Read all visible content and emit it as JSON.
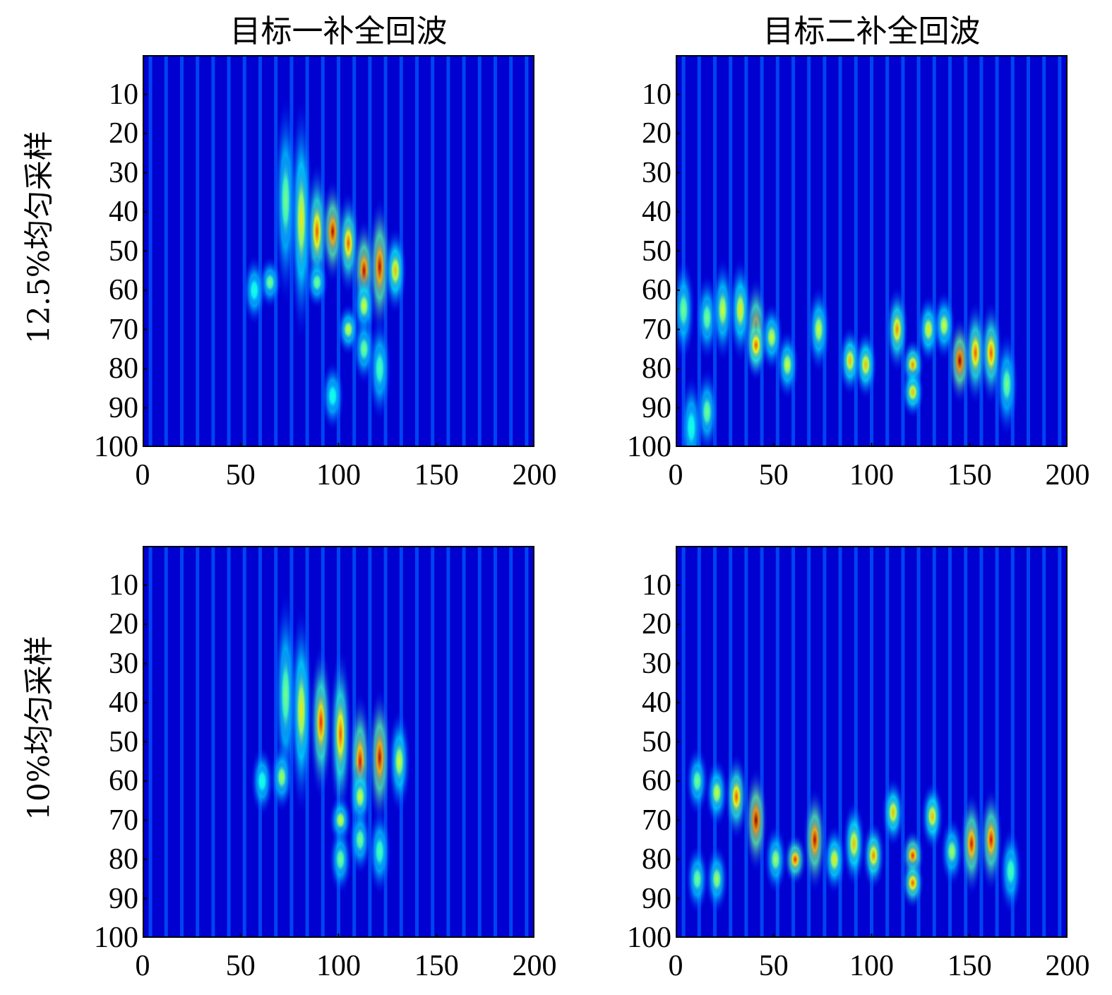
{
  "chart_data": [
    {
      "type": "heatmap",
      "title": "目标一补全回波",
      "ylabel": "12.5%均匀采样",
      "xlim": [
        0,
        200
      ],
      "ylim": [
        100,
        0
      ],
      "xticks": [
        0,
        50,
        100,
        150,
        200
      ],
      "yticks": [
        10,
        20,
        30,
        40,
        50,
        60,
        70,
        80,
        90,
        100
      ],
      "colormap": "jet",
      "peaks": [
        [
          73,
          37,
          0.5,
          12
        ],
        [
          81,
          42,
          0.65,
          14
        ],
        [
          89,
          45,
          0.8,
          8
        ],
        [
          97,
          45,
          0.95,
          6
        ],
        [
          105,
          48,
          0.8,
          6
        ],
        [
          113,
          55,
          0.95,
          6
        ],
        [
          121,
          54,
          0.95,
          8
        ],
        [
          129,
          55,
          0.7,
          5
        ],
        [
          113,
          64,
          0.6,
          4
        ],
        [
          105,
          70,
          0.6,
          3
        ],
        [
          113,
          75,
          0.5,
          4
        ],
        [
          89,
          58,
          0.5,
          3
        ],
        [
          65,
          58,
          0.5,
          3
        ],
        [
          57,
          60,
          0.4,
          4
        ],
        [
          121,
          80,
          0.45,
          6
        ],
        [
          97,
          87,
          0.4,
          4
        ]
      ]
    },
    {
      "type": "heatmap",
      "title": "目标二补全回波",
      "ylabel": "",
      "xlim": [
        0,
        200
      ],
      "ylim": [
        100,
        0
      ],
      "xticks": [
        0,
        50,
        100,
        150,
        200
      ],
      "yticks": [
        10,
        20,
        30,
        40,
        50,
        60,
        70,
        80,
        90,
        100
      ],
      "colormap": "jet",
      "peaks": [
        [
          4,
          65,
          0.5,
          6
        ],
        [
          16,
          67,
          0.5,
          5
        ],
        [
          24,
          65,
          0.6,
          6
        ],
        [
          33,
          65,
          0.65,
          6
        ],
        [
          41,
          70,
          0.9,
          6
        ],
        [
          41,
          74,
          0.8,
          4
        ],
        [
          49,
          72,
          0.6,
          4
        ],
        [
          57,
          79,
          0.6,
          4
        ],
        [
          73,
          70,
          0.6,
          5
        ],
        [
          89,
          78,
          0.7,
          4
        ],
        [
          97,
          79,
          0.7,
          4
        ],
        [
          113,
          70,
          0.75,
          5
        ],
        [
          121,
          79,
          0.75,
          3
        ],
        [
          121,
          86,
          0.7,
          3
        ],
        [
          129,
          70,
          0.65,
          4
        ],
        [
          137,
          69,
          0.6,
          4
        ],
        [
          145,
          78,
          1.0,
          5
        ],
        [
          153,
          76,
          0.8,
          6
        ],
        [
          161,
          76,
          0.8,
          6
        ],
        [
          169,
          84,
          0.5,
          6
        ],
        [
          16,
          91,
          0.5,
          5
        ],
        [
          8,
          95,
          0.4,
          6
        ]
      ]
    },
    {
      "type": "heatmap",
      "title": "",
      "ylabel": "10%均匀采样",
      "xlim": [
        0,
        200
      ],
      "ylim": [
        100,
        0
      ],
      "xticks": [
        0,
        50,
        100,
        150,
        200
      ],
      "yticks": [
        10,
        20,
        30,
        40,
        50,
        60,
        70,
        80,
        90,
        100
      ],
      "colormap": "jet",
      "peaks": [
        [
          73,
          38,
          0.5,
          12
        ],
        [
          81,
          42,
          0.65,
          12
        ],
        [
          91,
          45,
          0.85,
          9
        ],
        [
          101,
          48,
          0.8,
          10
        ],
        [
          111,
          55,
          0.9,
          8
        ],
        [
          121,
          54,
          0.95,
          8
        ],
        [
          131,
          55,
          0.6,
          6
        ],
        [
          111,
          64,
          0.6,
          4
        ],
        [
          101,
          70,
          0.6,
          3
        ],
        [
          111,
          75,
          0.5,
          4
        ],
        [
          71,
          59,
          0.55,
          4
        ],
        [
          61,
          60,
          0.4,
          4
        ],
        [
          121,
          78,
          0.45,
          5
        ],
        [
          101,
          80,
          0.5,
          4
        ]
      ]
    },
    {
      "type": "heatmap",
      "title": "",
      "ylabel": "",
      "xlim": [
        0,
        200
      ],
      "ylim": [
        100,
        0
      ],
      "xticks": [
        0,
        50,
        100,
        150,
        200
      ],
      "yticks": [
        10,
        20,
        30,
        40,
        50,
        60,
        70,
        80,
        90,
        100
      ],
      "colormap": "jet",
      "peaks": [
        [
          31,
          64,
          0.8,
          5
        ],
        [
          41,
          70,
          1.0,
          6
        ],
        [
          21,
          63,
          0.6,
          4
        ],
        [
          71,
          75,
          0.95,
          6
        ],
        [
          61,
          80,
          0.85,
          3
        ],
        [
          81,
          80,
          0.65,
          4
        ],
        [
          91,
          76,
          0.7,
          5
        ],
        [
          101,
          79,
          0.75,
          4
        ],
        [
          111,
          68,
          0.7,
          4
        ],
        [
          121,
          79,
          0.85,
          3
        ],
        [
          121,
          86,
          0.8,
          3
        ],
        [
          131,
          69,
          0.7,
          4
        ],
        [
          151,
          76,
          0.9,
          6
        ],
        [
          161,
          75,
          0.9,
          6
        ],
        [
          141,
          78,
          0.55,
          4
        ],
        [
          11,
          85,
          0.5,
          4
        ],
        [
          21,
          85,
          0.55,
          4
        ],
        [
          51,
          80,
          0.55,
          4
        ],
        [
          11,
          60,
          0.5,
          4
        ],
        [
          171,
          83,
          0.45,
          5
        ]
      ]
    }
  ]
}
